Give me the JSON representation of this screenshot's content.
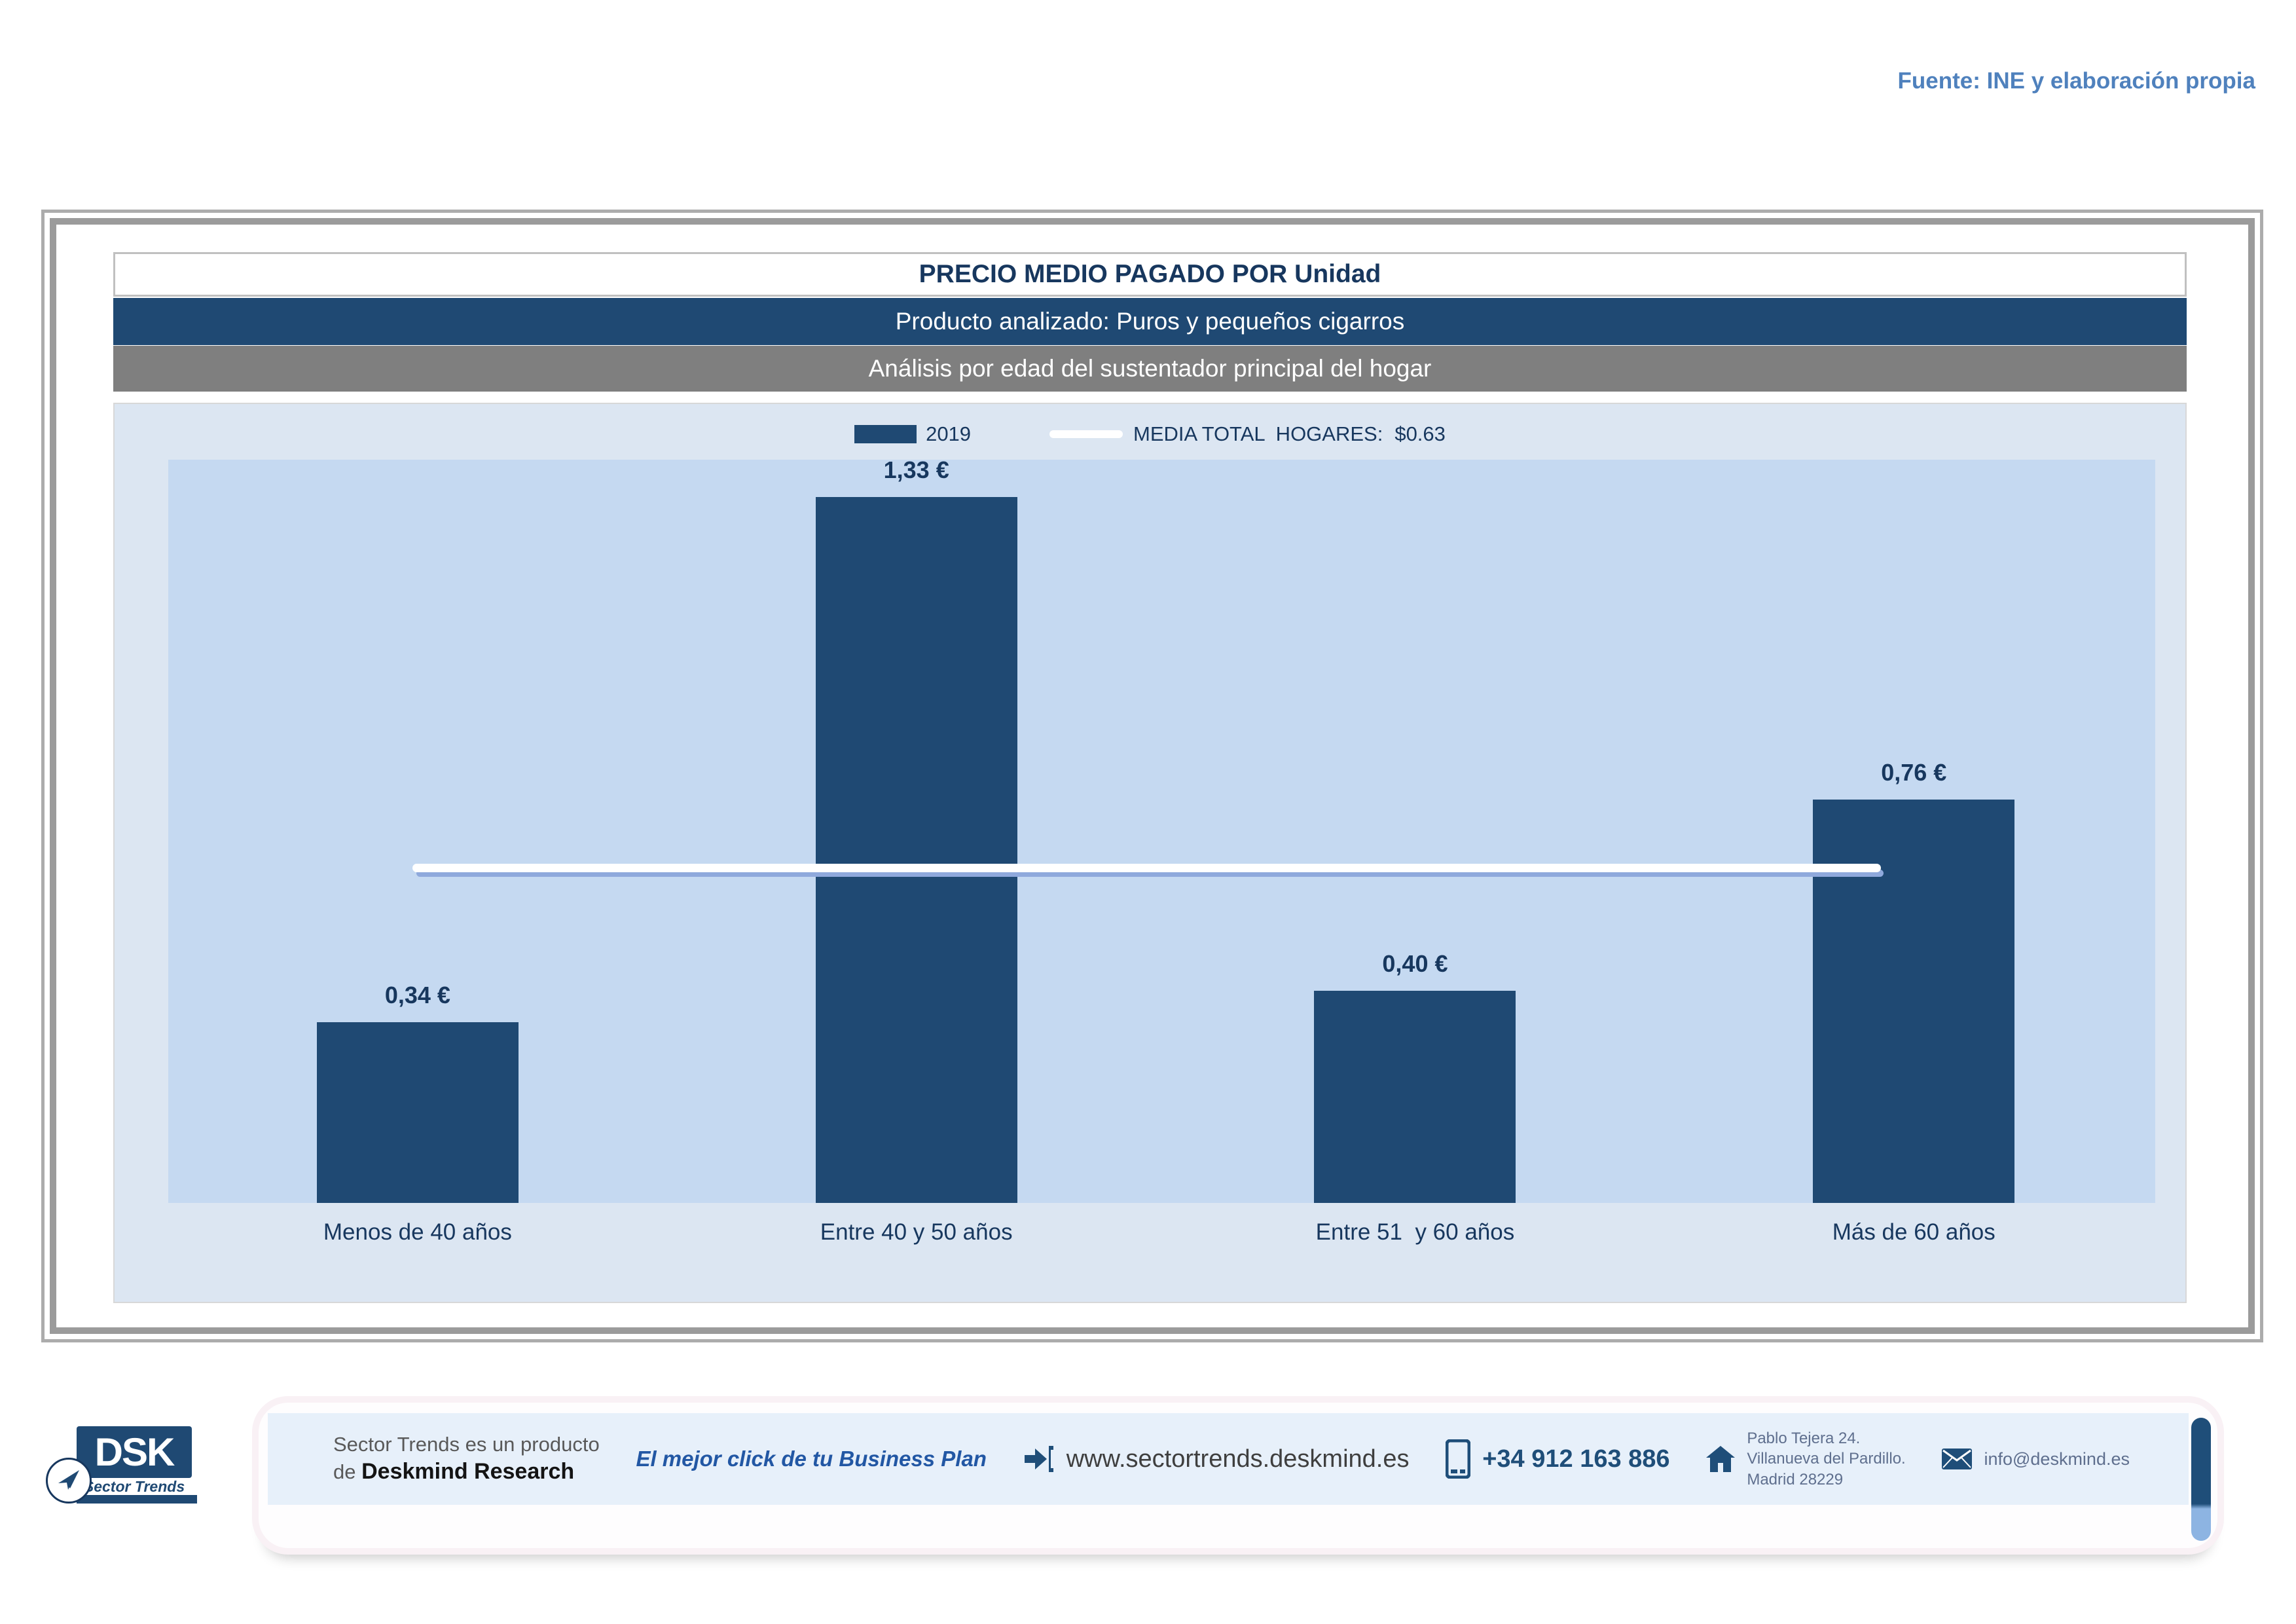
{
  "page": {
    "source_note": "Fuente: INE y elaboración propia"
  },
  "header": {
    "title": "PRECIO MEDIO PAGADO POR Unidad",
    "product_line": "Producto analizado: Puros y pequeños cigarros",
    "analysis_line": "Análisis por edad del sustentador principal del hogar"
  },
  "legend": {
    "series_label": "2019",
    "media_label": "MEDIA TOTAL  HOGARES:",
    "media_value": "$0.63"
  },
  "chart_data": {
    "type": "bar",
    "title": "PRECIO MEDIO PAGADO POR Unidad",
    "subtitle": "Producto analizado: Puros y pequeños cigarros",
    "series_name": "2019",
    "categories": [
      "Menos de 40 años",
      "Entre 40 y 50 años",
      "Entre 51  y 60 años",
      "Más de 60 años"
    ],
    "values": [
      0.34,
      1.33,
      0.4,
      0.76
    ],
    "value_labels": [
      "0,34 €",
      "1,33 €",
      "0,40 €",
      "0,76 €"
    ],
    "reference_line": {
      "label": "MEDIA TOTAL HOGARES",
      "value": 0.63,
      "display": "$0.63"
    },
    "xlabel": "",
    "ylabel": "",
    "ylim": [
      0,
      1.4
    ],
    "grid": false,
    "legend_position": "top",
    "bar_color": "#1F4973",
    "plot_background": "#C5D9F1",
    "chart_background": "#DCE6F2"
  },
  "footer": {
    "logo_text": "DSK",
    "logo_subtext": "Sector Trends",
    "product_line1": "Sector Trends es un producto",
    "product_line2_prefix": "de ",
    "product_line2_bold": "Deskmind Research",
    "tagline": "El mejor click de tu Business Plan",
    "website": "www.sectortrends.deskmind.es",
    "phone": "+34 912 163 886",
    "address_line1": "Pablo Tejera 24.",
    "address_line2": "Villanueva del Pardillo.",
    "address_line3": "Madrid 28229",
    "email": "info@deskmind.es"
  },
  "icons": {
    "arrow_right": "arrow-right-icon",
    "phone": "phone-icon",
    "house": "house-icon",
    "envelope": "envelope-icon",
    "paper_plane": "paper-plane-icon"
  },
  "colors": {
    "navy": "#1F4973",
    "navy_text": "#17375E",
    "steel_blue": "#4F81BD",
    "gray_band": "#7F7F7F",
    "chart_bg": "#DCE6F2",
    "plot_bg": "#C5D9F1",
    "footer_band": "#E7F0FA",
    "tab_light": "#8DB4E2",
    "reference_line": "#FFFFFF"
  }
}
